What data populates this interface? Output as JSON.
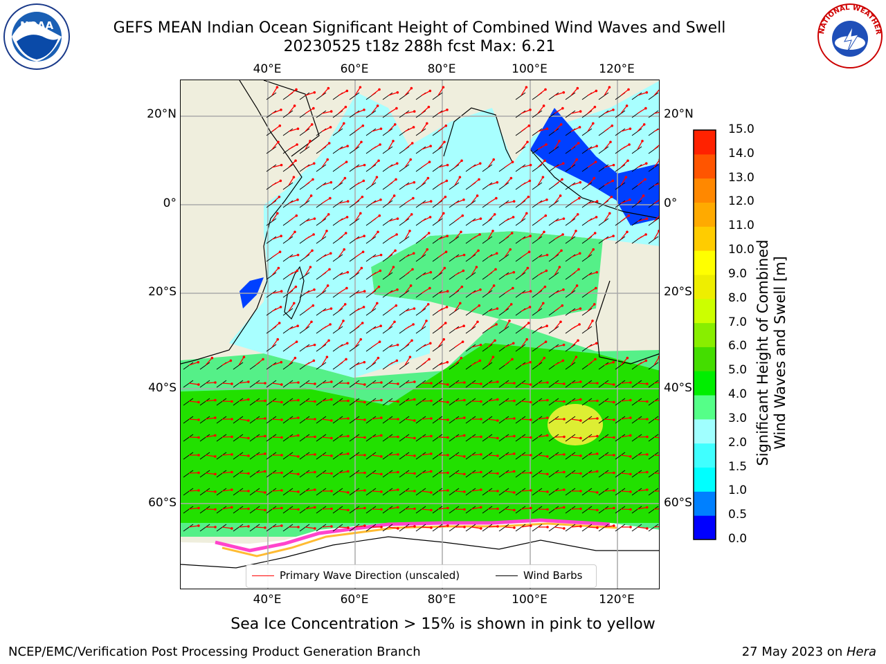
{
  "title": {
    "line1": "GEFS MEAN Indian Ocean Significant Height of Combined Wind Waves and Swell",
    "line2": "20230525 t18z 288h fcst   Max: 6.21"
  },
  "logos": {
    "left": "NOAA",
    "right": "NATIONAL WEATHER SERVICE"
  },
  "axes": {
    "top_lon": [
      "40°E",
      "60°E",
      "80°E",
      "100°E",
      "120°E"
    ],
    "bottom_lon": [
      "40°E",
      "60°E",
      "80°E",
      "100°E",
      "120°E"
    ],
    "left_lat": [
      "20°N",
      "0°",
      "20°S",
      "40°S",
      "60°S"
    ],
    "right_lat": [
      "20°N",
      "0°",
      "20°S",
      "40°S",
      "60°S"
    ],
    "lon_range": [
      20,
      130
    ],
    "lat_range": [
      -75,
      27
    ],
    "grid": true
  },
  "legend": {
    "wave_label": "Primary Wave Direction (unscaled)",
    "barb_label": "Wind Barbs",
    "wave_color": "#ff0000",
    "barb_color": "#000000"
  },
  "colorbar": {
    "title_line1": "Significant Height of Combined",
    "title_line2": "Wind Waves and Swell [m]",
    "labels": [
      "0.0",
      "0.5",
      "1.0",
      "1.5",
      "2.0",
      "3.0",
      "4.0",
      "5.0",
      "6.0",
      "7.0",
      "8.0",
      "9.0",
      "10.0",
      "11.0",
      "12.0",
      "13.0",
      "14.0",
      "15.0"
    ],
    "colors": [
      "#0000ff",
      "#0080ff",
      "#00ffff",
      "#40ffff",
      "#a0ffff",
      "#55ff88",
      "#00ee00",
      "#44dd00",
      "#88ee00",
      "#ccff00",
      "#eeee00",
      "#ffff00",
      "#ffcc00",
      "#ffaa00",
      "#ff8800",
      "#ff5500",
      "#ff2200"
    ]
  },
  "ice_note": "Sea Ice Concentration > 15% is shown in pink to yellow",
  "footer": {
    "left": "NCEP/EMC/Verification Post Processing Product Generation Branch",
    "right_prefix": "27 May 2023 on ",
    "right_host": "Hera"
  },
  "map_colors": {
    "land": "#efeedd",
    "antarctica": "#ffffff",
    "low": "#a8ffff",
    "mid": "#55f088",
    "high": "#22e000",
    "peak": "#ddee33",
    "coastal": "#0040ff",
    "ice_pink": "#ff44cc",
    "ice_yellow": "#ffbb33"
  }
}
